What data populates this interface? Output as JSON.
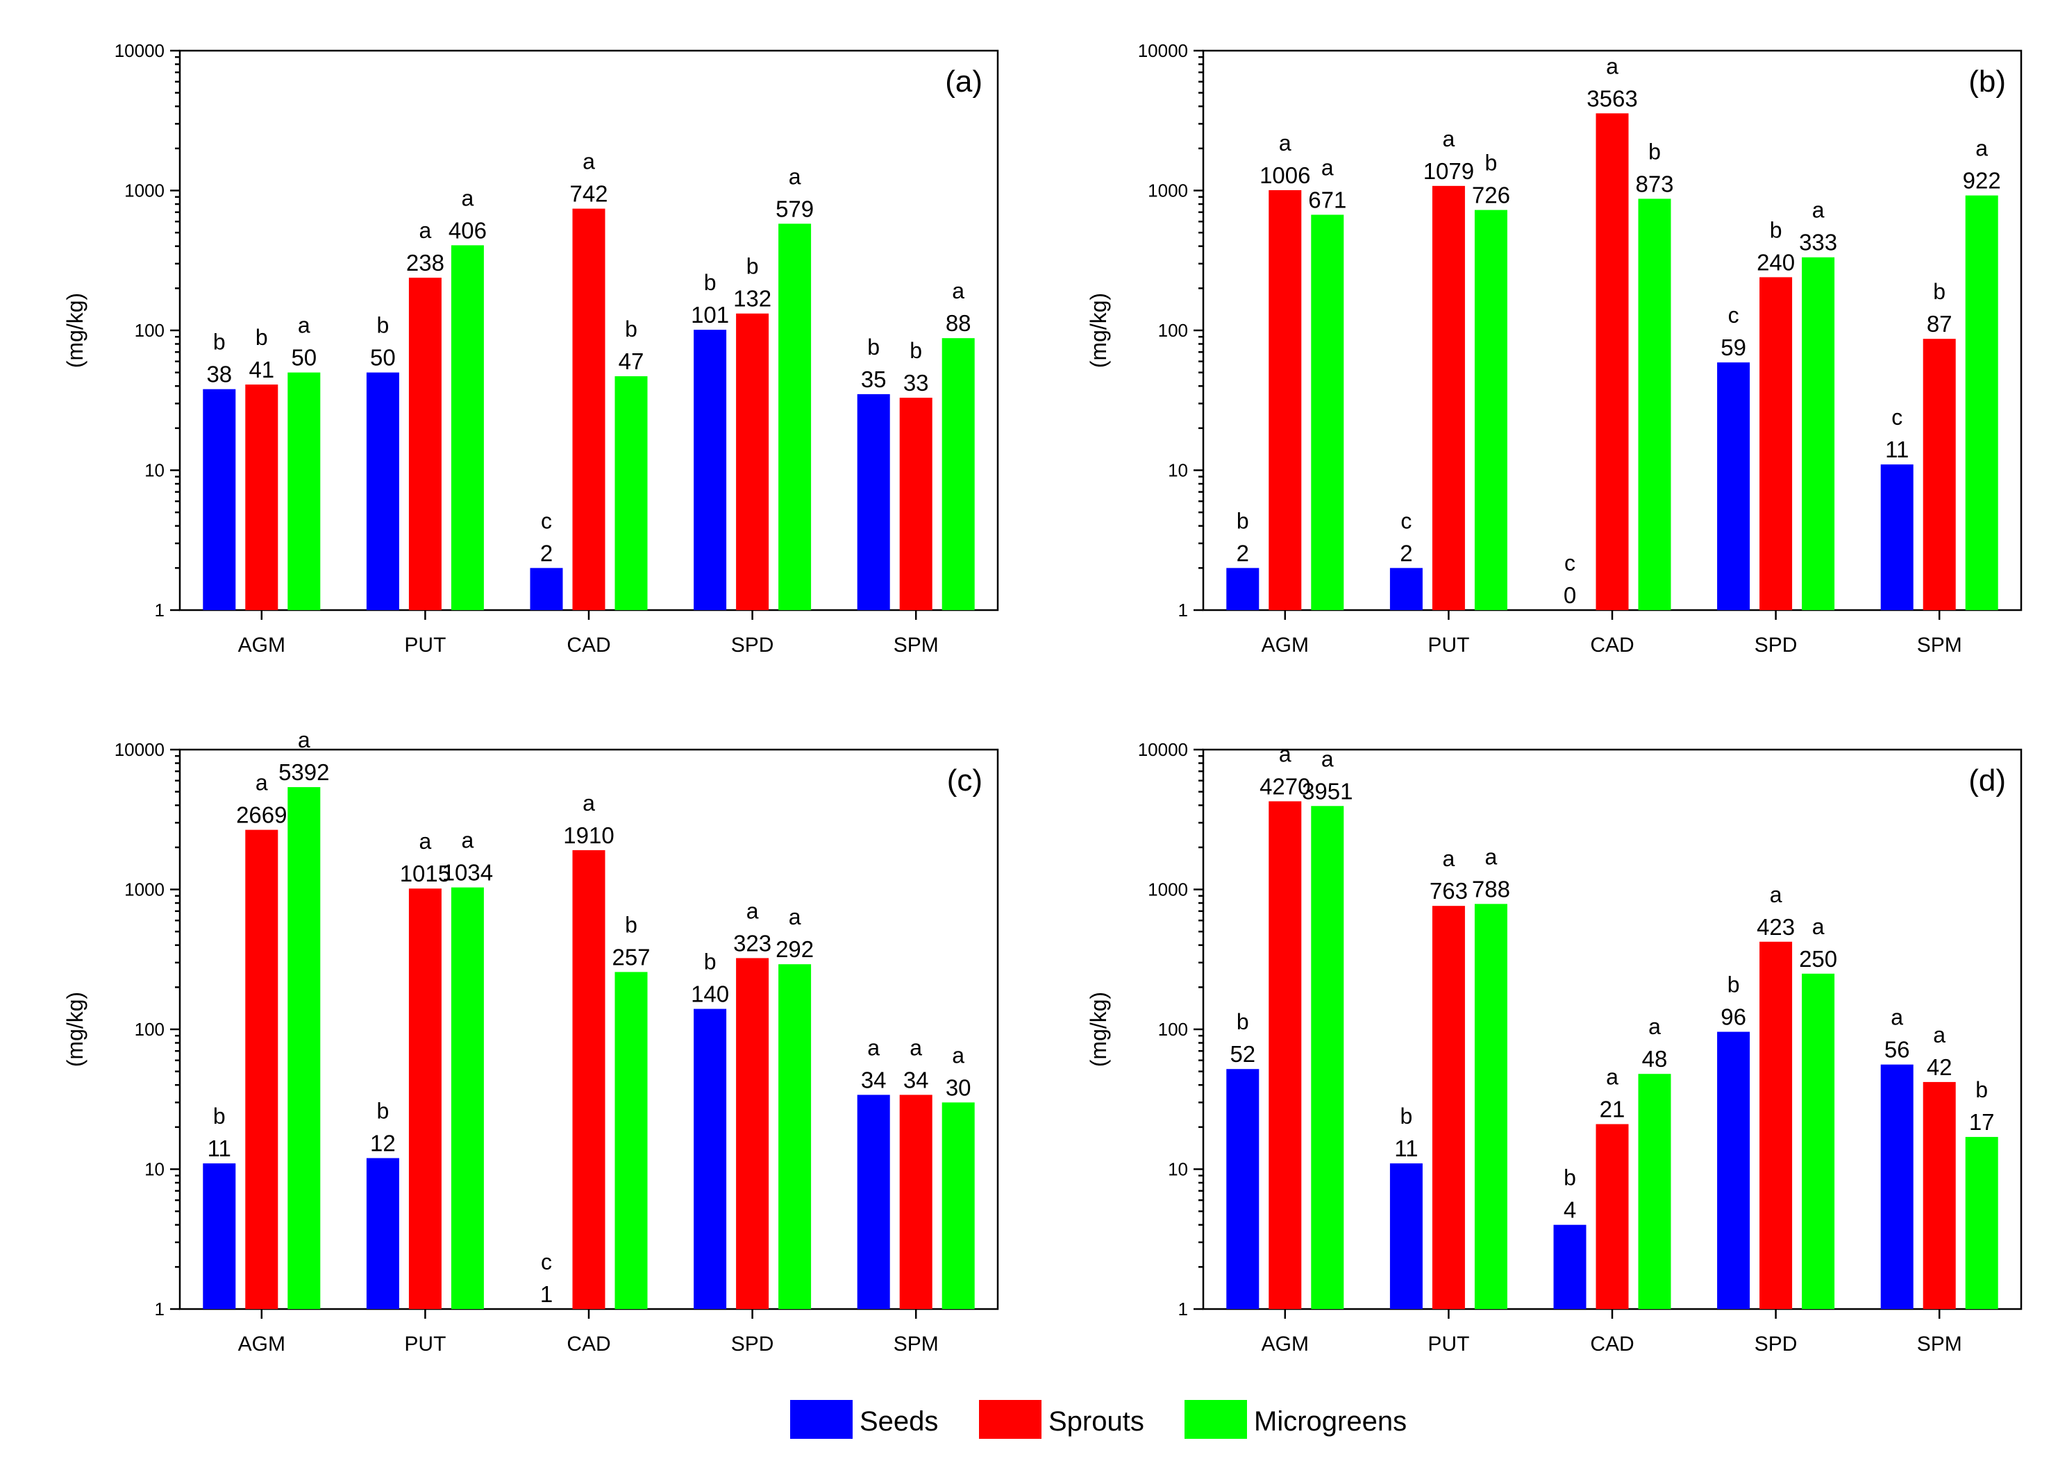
{
  "legend": [
    {
      "name": "Seeds",
      "color": "#0000ff"
    },
    {
      "name": "Sprouts",
      "color": "#ff0000"
    },
    {
      "name": "Microgreens",
      "color": "#00ff00"
    }
  ],
  "chart_data": [
    {
      "type": "bar",
      "panel": "(a)",
      "ylabel": "(mg/kg)",
      "yscale": "log",
      "ylim": [
        1,
        10000
      ],
      "yticks": [
        "1",
        "10",
        "100",
        "1000",
        "10000"
      ],
      "categories": [
        "AGM",
        "PUT",
        "CAD",
        "SPD",
        "SPM"
      ],
      "series": [
        {
          "name": "Seeds",
          "values": [
            38,
            50,
            2,
            101,
            35
          ],
          "labels": [
            "38",
            "50",
            "2",
            "101",
            "35"
          ],
          "letters": [
            "b",
            "b",
            "c",
            "b",
            "b"
          ]
        },
        {
          "name": "Sprouts",
          "values": [
            41,
            238,
            742,
            132,
            33
          ],
          "labels": [
            "41",
            "238",
            "742",
            "132",
            "33"
          ],
          "letters": [
            "b",
            "a",
            "a",
            "b",
            "b"
          ]
        },
        {
          "name": "Microgreens",
          "values": [
            50,
            406,
            47,
            579,
            88
          ],
          "labels": [
            "50",
            "406",
            "47",
            "579",
            "88"
          ],
          "letters": [
            "a",
            "a",
            "b",
            "a",
            "a"
          ]
        }
      ]
    },
    {
      "type": "bar",
      "panel": "(b)",
      "ylabel": "(mg/kg)",
      "yscale": "log",
      "ylim": [
        1,
        10000
      ],
      "yticks": [
        "1",
        "10",
        "100",
        "1000",
        "10000"
      ],
      "categories": [
        "AGM",
        "PUT",
        "CAD",
        "SPD",
        "SPM"
      ],
      "series": [
        {
          "name": "Seeds",
          "values": [
            2,
            2,
            0,
            59,
            11
          ],
          "labels": [
            "2",
            "2",
            "0",
            "59",
            "11"
          ],
          "letters": [
            "b",
            "c",
            "c",
            "c",
            "c"
          ]
        },
        {
          "name": "Sprouts",
          "values": [
            1006,
            1079,
            3563,
            240,
            87
          ],
          "labels": [
            "1006",
            "1079",
            "3563",
            "240",
            "87"
          ],
          "letters": [
            "a",
            "a",
            "a",
            "b",
            "b"
          ]
        },
        {
          "name": "Microgreens",
          "values": [
            671,
            726,
            873,
            333,
            922
          ],
          "labels": [
            "671",
            "726",
            "873",
            "333",
            "922"
          ],
          "letters": [
            "a",
            "b",
            "b",
            "a",
            "a"
          ]
        }
      ]
    },
    {
      "type": "bar",
      "panel": "(c)",
      "ylabel": "(mg/kg)",
      "yscale": "log",
      "ylim": [
        1,
        10000
      ],
      "yticks": [
        "1",
        "10",
        "100",
        "1000",
        "10000"
      ],
      "categories": [
        "AGM",
        "PUT",
        "CAD",
        "SPD",
        "SPM"
      ],
      "series": [
        {
          "name": "Seeds",
          "values": [
            11,
            12,
            1,
            140,
            34
          ],
          "labels": [
            "11",
            "12",
            "1",
            "140",
            "34"
          ],
          "letters": [
            "b",
            "b",
            "c",
            "b",
            "a"
          ]
        },
        {
          "name": "Sprouts",
          "values": [
            2669,
            1015,
            1910,
            323,
            34
          ],
          "labels": [
            "2669",
            "1015",
            "1910",
            "323",
            "34"
          ],
          "letters": [
            "a",
            "a",
            "a",
            "a",
            "a"
          ]
        },
        {
          "name": "Microgreens",
          "values": [
            5392,
            1034,
            257,
            292,
            30
          ],
          "labels": [
            "5392",
            "1034",
            "257",
            "292",
            "30"
          ],
          "letters": [
            "a",
            "a",
            "b",
            "a",
            "a"
          ]
        }
      ]
    },
    {
      "type": "bar",
      "panel": "(d)",
      "ylabel": "(mg/kg)",
      "yscale": "log",
      "ylim": [
        1,
        10000
      ],
      "yticks": [
        "1",
        "10",
        "100",
        "1000",
        "10000"
      ],
      "categories": [
        "AGM",
        "PUT",
        "CAD",
        "SPD",
        "SPM"
      ],
      "series": [
        {
          "name": "Seeds",
          "values": [
            52,
            11,
            4,
            96,
            56
          ],
          "labels": [
            "52",
            "11",
            "4",
            "96",
            "56"
          ],
          "letters": [
            "b",
            "b",
            "b",
            "b",
            "a"
          ]
        },
        {
          "name": "Sprouts",
          "values": [
            4270,
            763,
            21,
            423,
            42
          ],
          "labels": [
            "4270",
            "763",
            "21",
            "423",
            "42"
          ],
          "letters": [
            "a",
            "a",
            "a",
            "a",
            "a"
          ]
        },
        {
          "name": "Microgreens",
          "values": [
            3951,
            788,
            48,
            250,
            17
          ],
          "labels": [
            "3951",
            "788",
            "48",
            "250",
            "17"
          ],
          "letters": [
            "a",
            "a",
            "a",
            "a",
            "b"
          ]
        }
      ]
    }
  ]
}
